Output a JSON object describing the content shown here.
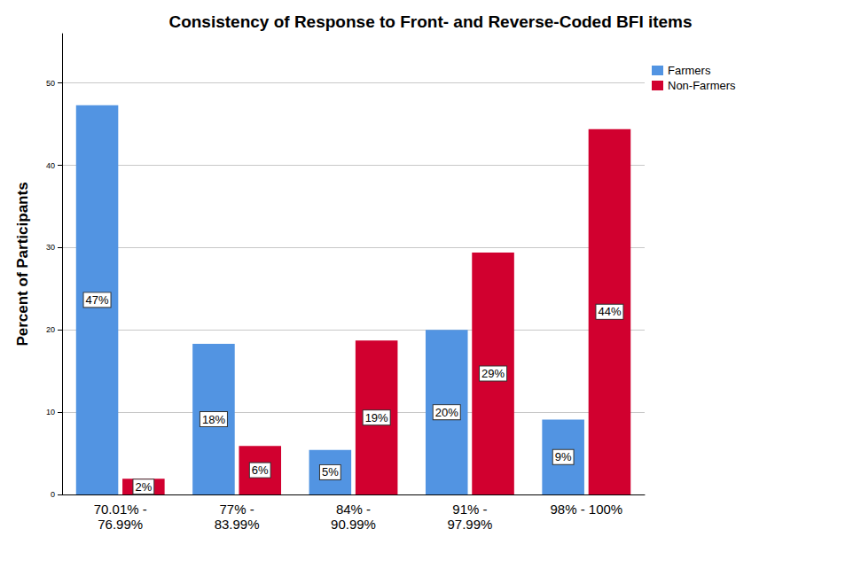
{
  "chart_data": {
    "type": "bar",
    "title": "Consistency of Response to Front- and Reverse-Coded BFI items",
    "y_label": "Percent of Participants",
    "categories": [
      "70.01% -\n76.99%",
      "77% -\n83.99%",
      "84% -\n90.99%",
      "91% -\n97.99%",
      "98% - 100%"
    ],
    "series": [
      {
        "name": "Farmers",
        "color": "#5294e2",
        "values": [
          47.3,
          18.3,
          5.4,
          20.0,
          9.1
        ],
        "value_labels": [
          "47%",
          "18%",
          "5%",
          "20%",
          "9%"
        ]
      },
      {
        "name": "Non-Farmers",
        "color": "#d1002f",
        "values": [
          1.9,
          5.9,
          18.7,
          29.4,
          44.4
        ],
        "value_labels": [
          "2%",
          "6%",
          "19%",
          "29%",
          "44%"
        ]
      }
    ],
    "ylim": [
      0,
      56
    ],
    "yticks": [
      0,
      10,
      20,
      30,
      40,
      50
    ],
    "grid": true,
    "legend": "top-right",
    "data_labels": true
  }
}
